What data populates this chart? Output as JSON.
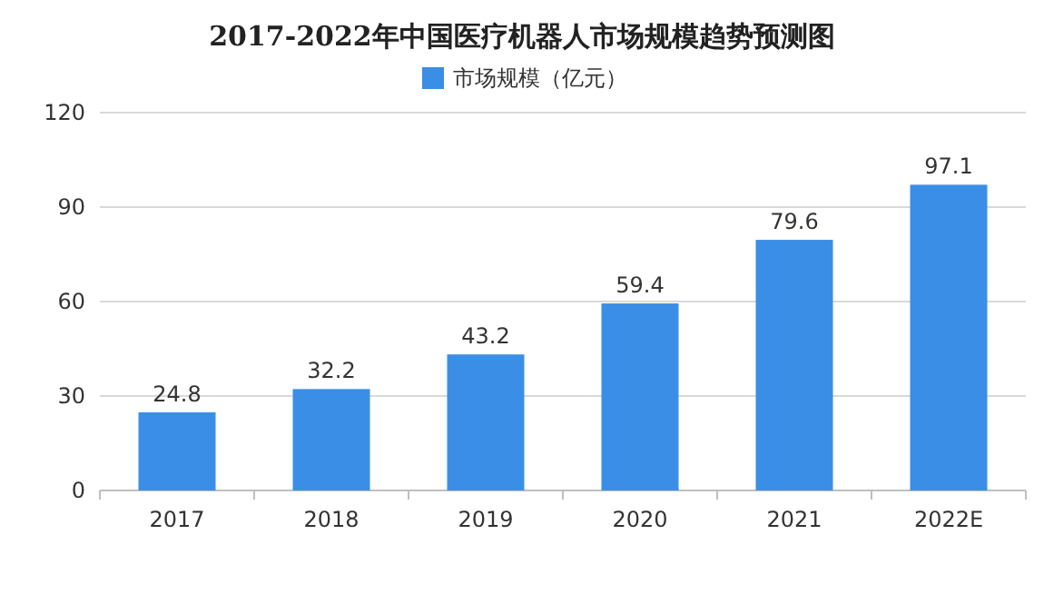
{
  "chart_data": {
    "type": "bar",
    "title": "2017-2022年中国医疗机器人市场规模趋势预测图",
    "categories": [
      "2017",
      "2018",
      "2019",
      "2020",
      "2021",
      "2022E"
    ],
    "series": [
      {
        "name": "市场规模（亿元）",
        "color": "#3a8ee6",
        "values": [
          24.8,
          32.2,
          43.2,
          59.4,
          79.6,
          97.1
        ]
      }
    ],
    "ylim": [
      0,
      120
    ],
    "yticks": [
      0,
      30,
      60,
      90,
      120
    ],
    "grid": "y",
    "legend": "top",
    "data_labels": true
  }
}
